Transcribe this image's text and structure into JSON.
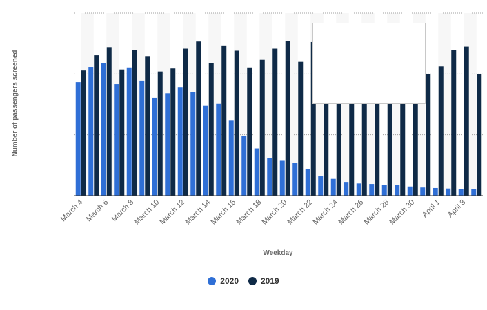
{
  "chart_data": {
    "type": "bar",
    "xlabel": "Weekday",
    "ylabel": "Number of passengers screened",
    "categories": [
      "March 4",
      "March 5",
      "March 6",
      "March 7",
      "March 8",
      "March 9",
      "March 10",
      "March 11",
      "March 12",
      "March 13",
      "March 14",
      "March 15",
      "March 16",
      "March 17",
      "March 18",
      "March 19",
      "March 20",
      "March 21",
      "March 22",
      "March 23",
      "March 24",
      "March 25",
      "March 26",
      "March 27",
      "March 28",
      "March 29",
      "March 30",
      "March 31",
      "April 1",
      "April 2",
      "April 3",
      "April 4"
    ],
    "tick_labels": [
      "March 4",
      "March 6",
      "March 8",
      "March 10",
      "March 12",
      "March 14",
      "March 16",
      "March 18",
      "March 20",
      "March 22",
      "March 24",
      "March 26",
      "March 28",
      "March 30",
      "April 1",
      "April 3"
    ],
    "series": [
      {
        "name": "2020",
        "color": "#2f6fd6",
        "values": [
          2.24,
          2.54,
          2.62,
          2.2,
          2.53,
          2.27,
          1.93,
          2.02,
          2.13,
          2.04,
          1.77,
          1.81,
          1.49,
          1.17,
          0.93,
          0.74,
          0.7,
          0.64,
          0.53,
          0.38,
          0.33,
          0.27,
          0.24,
          0.23,
          0.21,
          0.21,
          0.18,
          0.16,
          0.15,
          0.14,
          0.13,
          0.13
        ]
      },
      {
        "name": "2019",
        "color": "#0f2a47",
        "values": [
          2.47,
          2.77,
          2.93,
          2.49,
          2.88,
          2.74,
          2.45,
          2.51,
          2.9,
          3.04,
          2.62,
          2.95,
          2.86,
          2.53,
          2.68,
          2.9,
          3.05,
          2.64,
          3.03,
          2.8,
          2.8,
          2.8,
          2.8,
          2.8,
          2.8,
          2.8,
          2.8,
          2.4,
          2.55,
          2.88,
          2.94,
          2.4
        ]
      }
    ],
    "ylim": [
      0,
      3.6
    ],
    "yticks": [
      0,
      1.2,
      2.4,
      3.6
    ],
    "grid": true,
    "legend": "bottom-center"
  }
}
